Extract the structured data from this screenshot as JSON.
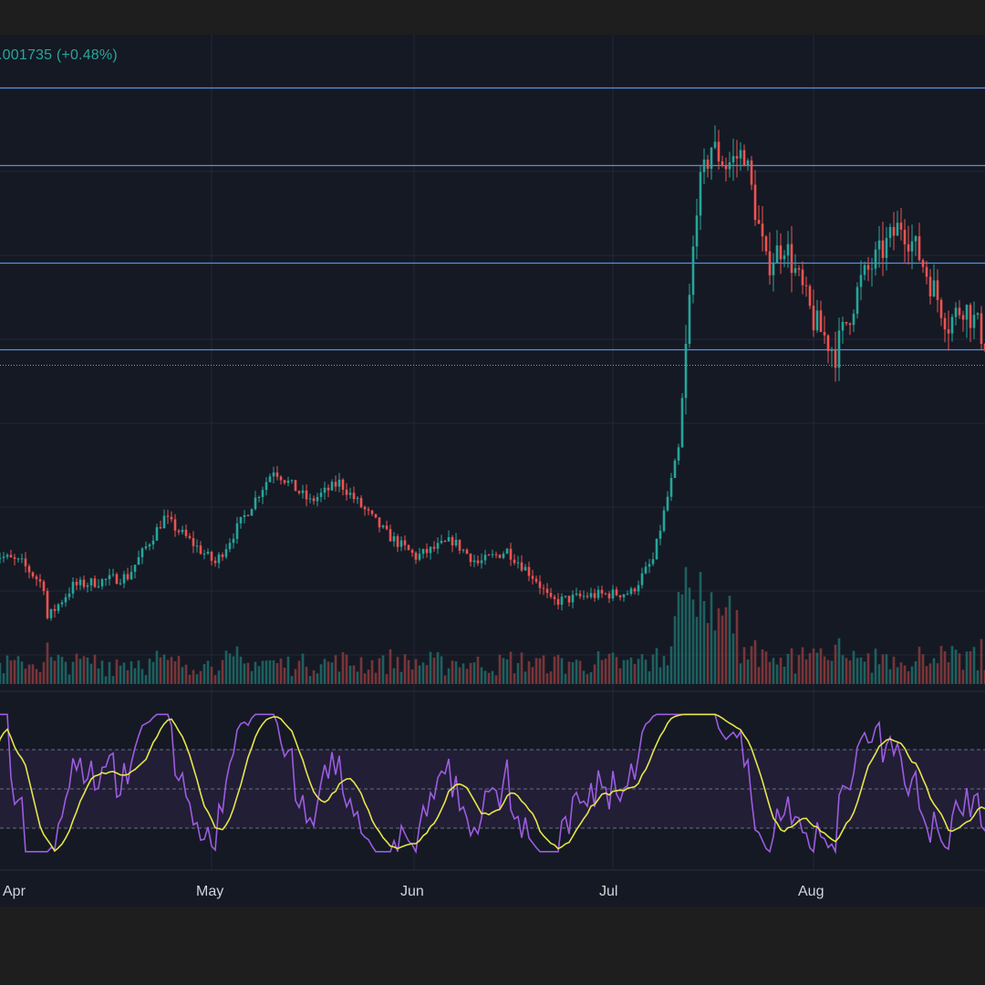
{
  "price_header": {
    "change_text": ".001735 (+0.48%)"
  },
  "colors": {
    "background": "#151924",
    "outer_background": "#1e1e1e",
    "grid": "#222837",
    "up": "#26a69a",
    "down": "#ef5350",
    "horizontal_level": "#5b8fd6",
    "rsi_line": "#9c5ce0",
    "rsi_ma": "#e5e64a",
    "rsi_band": "#231f39",
    "text": "#d1d4dc"
  },
  "chart_data": {
    "type": "candlestick",
    "x_axis": {
      "labels": [
        "Apr",
        "May",
        "Jun",
        "Jul",
        "Aug"
      ]
    },
    "price_series_waypoints": [
      {
        "day": 0,
        "value": 46
      },
      {
        "day": 8,
        "value": 43
      },
      {
        "day": 14,
        "value": 36
      },
      {
        "day": 15,
        "value": 26
      },
      {
        "day": 22,
        "value": 36
      },
      {
        "day": 37,
        "value": 39
      },
      {
        "day": 47,
        "value": 57
      },
      {
        "day": 61,
        "value": 43
      },
      {
        "day": 77,
        "value": 72
      },
      {
        "day": 87,
        "value": 62
      },
      {
        "day": 95,
        "value": 68
      },
      {
        "day": 108,
        "value": 52
      },
      {
        "day": 116,
        "value": 45
      },
      {
        "day": 126,
        "value": 50
      },
      {
        "day": 133,
        "value": 43
      },
      {
        "day": 141,
        "value": 47
      },
      {
        "day": 149,
        "value": 38
      },
      {
        "day": 153,
        "value": 31
      },
      {
        "day": 163,
        "value": 33
      },
      {
        "day": 175,
        "value": 34
      },
      {
        "day": 181,
        "value": 44
      },
      {
        "day": 188,
        "value": 78
      },
      {
        "day": 193,
        "value": 155
      },
      {
        "day": 197,
        "value": 172
      },
      {
        "day": 201,
        "value": 166
      },
      {
        "day": 206,
        "value": 170
      },
      {
        "day": 212,
        "value": 135
      },
      {
        "day": 217,
        "value": 142
      },
      {
        "day": 225,
        "value": 118
      },
      {
        "day": 231,
        "value": 108
      },
      {
        "day": 238,
        "value": 130
      },
      {
        "day": 249,
        "value": 148
      },
      {
        "day": 254,
        "value": 138
      },
      {
        "day": 262,
        "value": 117
      },
      {
        "day": 266,
        "value": 123
      },
      {
        "day": 269,
        "value": 118
      },
      {
        "day": 273,
        "value": 110
      }
    ],
    "horizontal_levels": [
      190,
      166,
      136,
      109
    ],
    "volume_series": "per-candle volume bars beneath price",
    "rsi": {
      "upper_band": 70,
      "middle": 50,
      "lower_band": 30
    }
  }
}
